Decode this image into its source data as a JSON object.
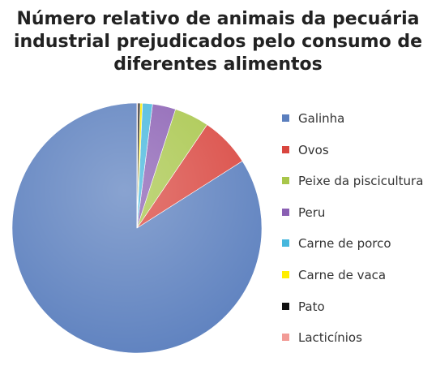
{
  "chart_data": {
    "type": "pie",
    "title_lines": [
      "Número relativo de animais da pecuária",
      "industrial prejudicados pelo consumo de",
      "diferentes alimentos"
    ],
    "categories": [
      "Galinha",
      "Ovos",
      "Peixe da piscicultura",
      "Peru",
      "Carne de porco",
      "Carne de vaca",
      "Pato",
      "Lacticínios"
    ],
    "values": [
      84.0,
      6.5,
      4.5,
      3.0,
      1.3,
      0.3,
      0.3,
      0.1
    ],
    "colors": [
      "#5b7fbe",
      "#d9463f",
      "#a8c64a",
      "#8a5fb3",
      "#46b7dd",
      "#ffee00",
      "#111111",
      "#f29b96"
    ],
    "legend_position": "right"
  }
}
